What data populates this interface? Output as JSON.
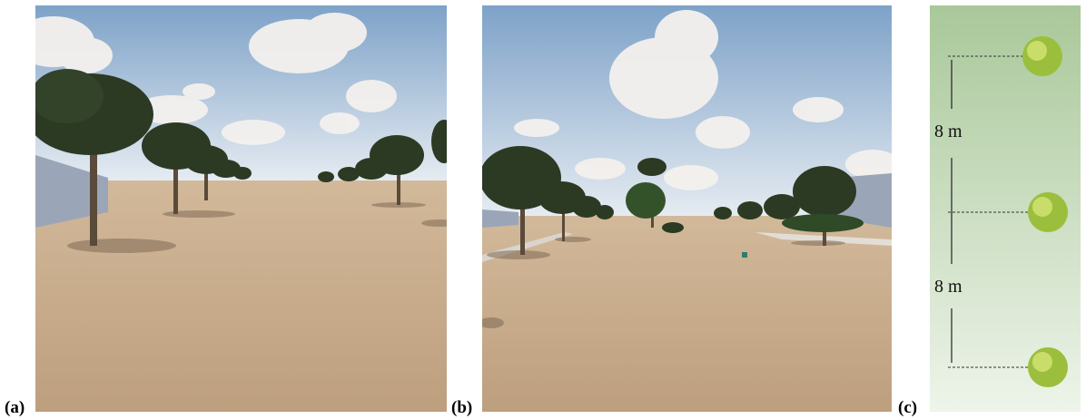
{
  "panels": [
    {
      "label": "(a)"
    },
    {
      "label": "(b)"
    },
    {
      "label": "(c)"
    }
  ],
  "spacing": {
    "upper": "8 m",
    "lower": "8 m"
  },
  "colors": {
    "sky_top": "#7ea2c8",
    "sky_horizon": "#e6ecf2",
    "ground": "#c2a585",
    "ground_far": "#d2b99a",
    "foliage": "#2c3a24",
    "trunk": "#5a4a3a",
    "building": "#9aa6b8",
    "plan_bg_top": "#a9c89a",
    "plan_bg_bottom": "#eef4ea",
    "shrub": "#9bbf3c"
  }
}
